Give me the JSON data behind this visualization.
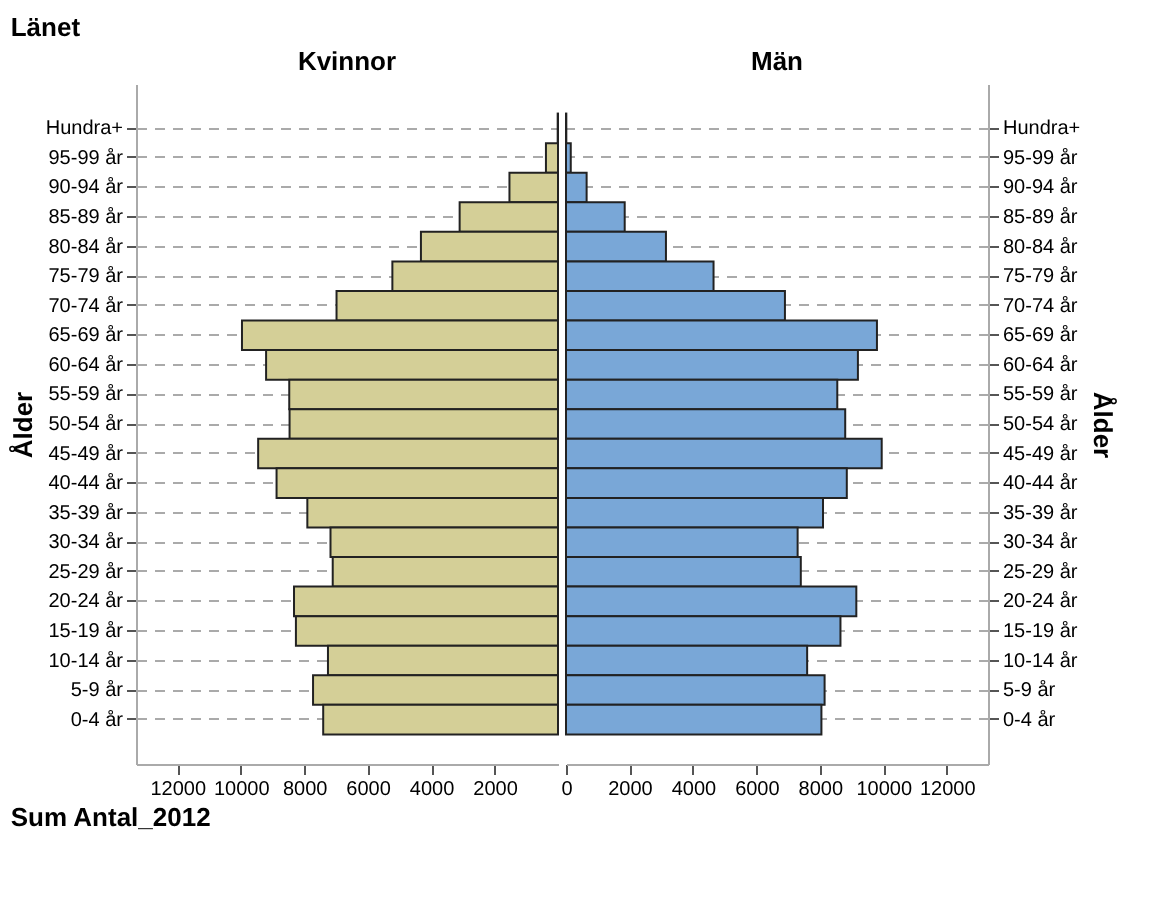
{
  "chart_data": [
    {
      "type": "bar",
      "orientation": "horizontal",
      "title": "Kvinnor",
      "xlabel": "Sum Antal_2012",
      "ylabel": "Ålder",
      "annotations": [
        "Länet"
      ],
      "categories": [
        "Hundra+",
        "95-99 år",
        "90-94 år",
        "85-89 år",
        "80-84 år",
        "75-79 år",
        "70-74 år",
        "65-69 år",
        "60-64 år",
        "55-59 år",
        "50-54 år",
        "45-49 år",
        "40-44 år",
        "35-39 år",
        "30-34 år",
        "25-29 år",
        "20-24 år",
        "15-19 år",
        "10-14 år",
        "5-9 år",
        "0-4 år"
      ],
      "values": [
        10,
        380,
        1530,
        3100,
        4320,
        5220,
        6980,
        9960,
        9200,
        8470,
        8460,
        9450,
        8870,
        7900,
        7170,
        7100,
        8320,
        8260,
        7250,
        7720,
        7400
      ],
      "color": "#d4cf97",
      "xlim": [
        13300,
        0
      ],
      "xticks": [
        12000,
        10000,
        8000,
        6000,
        4000,
        2000
      ],
      "grid": "y"
    },
    {
      "type": "bar",
      "orientation": "horizontal",
      "title": "Män",
      "ylabel": "Ålder",
      "categories": [
        "Hundra+",
        "95-99 år",
        "90-94 år",
        "85-89 år",
        "80-84 år",
        "75-79 år",
        "70-74 år",
        "65-69 år",
        "60-64 år",
        "55-59 år",
        "50-54 år",
        "45-49 år",
        "40-44 år",
        "35-39 år",
        "30-34 år",
        "25-29 år",
        "20-24 år",
        "15-19 år",
        "10-14 år",
        "5-9 år",
        "0-4 år"
      ],
      "values": [
        10,
        150,
        650,
        1850,
        3150,
        4650,
        6900,
        9800,
        9200,
        8550,
        8800,
        9950,
        8850,
        8100,
        7300,
        7400,
        9150,
        8650,
        7600,
        8150,
        8050
      ],
      "color": "#79a7d7",
      "xlim": [
        0,
        13300
      ],
      "xticks": [
        0,
        2000,
        4000,
        6000,
        8000,
        10000,
        12000
      ],
      "grid": "y"
    }
  ]
}
